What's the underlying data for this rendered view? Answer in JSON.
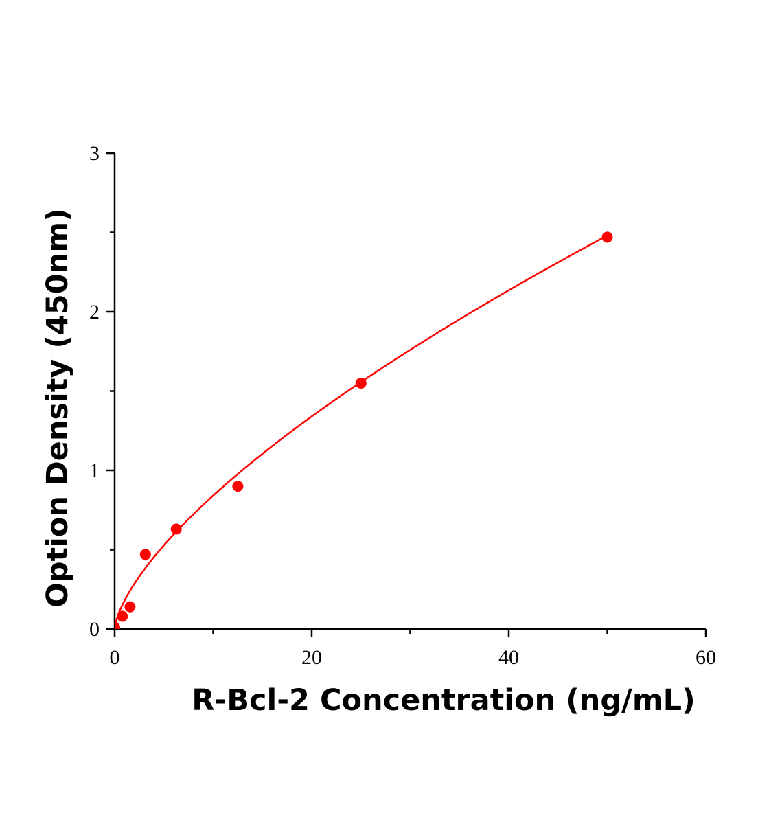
{
  "chart_data": {
    "type": "scatter",
    "title": "",
    "xlabel": "R-Bcl-2 Concentration (ng/mL)",
    "ylabel": "Option Density (450nm)",
    "xlim": [
      0,
      60
    ],
    "ylim": [
      0,
      3
    ],
    "x_ticks": [
      "0",
      "20",
      "40",
      "60"
    ],
    "y_ticks": [
      "0",
      "1",
      "2",
      "3"
    ],
    "x_minor_ticks": [
      10,
      30,
      50
    ],
    "y_minor_ticks": [
      0.5,
      1.5,
      2.5
    ],
    "grid": false,
    "legend": "none",
    "color": "#ff0000",
    "series": [
      {
        "x": [
          0,
          0.78,
          1.56,
          3.125,
          6.25,
          12.5,
          25,
          50
        ],
        "y": [
          0.01,
          0.08,
          0.14,
          0.47,
          0.63,
          0.9,
          1.55,
          2.47
        ]
      }
    ],
    "fit": {
      "type": "power",
      "a": 0.179,
      "b": 0.672
    }
  }
}
